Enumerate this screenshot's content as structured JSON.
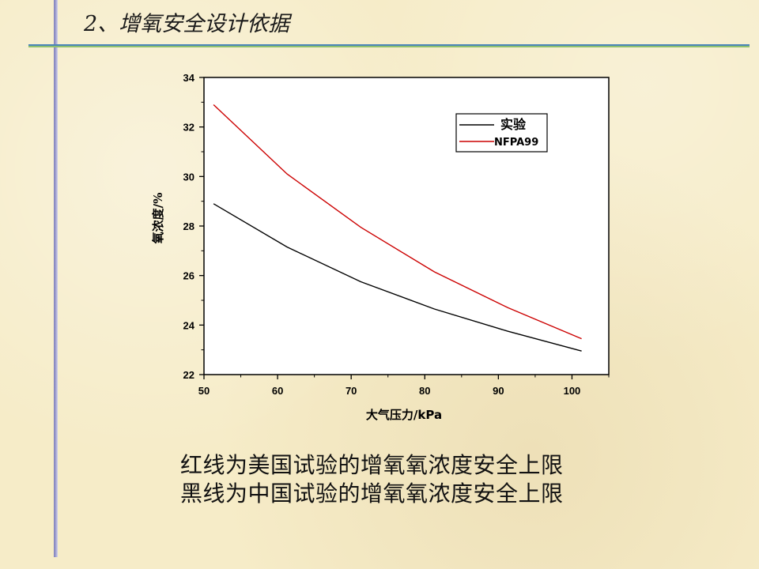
{
  "slide": {
    "title": "2、增氧安全设计依据",
    "caption_line1": "红线为美国试验的增氧氧浓度安全上限",
    "caption_line2": "黑线为中国试验的增氧氧浓度安全上限"
  },
  "colors": {
    "experiment": "#000000",
    "nfpa99": "#cc0000"
  },
  "chart_data": {
    "type": "line",
    "xlabel": "大气压力/kPa",
    "ylabel": "氧浓度/%",
    "xlim": [
      50,
      105
    ],
    "ylim": [
      22,
      34
    ],
    "xticks": [
      50,
      60,
      70,
      80,
      90,
      100
    ],
    "yticks": [
      22,
      24,
      26,
      28,
      30,
      32,
      34
    ],
    "legend_position": "top-right",
    "grid": false,
    "series": [
      {
        "name": "实验",
        "color": "#000000",
        "x": [
          51.3,
          61.3,
          71.3,
          81.3,
          91.3,
          101.3
        ],
        "y": [
          28.9,
          27.15,
          25.75,
          24.65,
          23.75,
          22.95
        ]
      },
      {
        "name": "NFPA99",
        "color": "#cc0000",
        "x": [
          51.3,
          61.3,
          71.3,
          81.3,
          91.3,
          101.3
        ],
        "y": [
          32.9,
          30.1,
          27.95,
          26.15,
          24.7,
          23.45
        ]
      }
    ]
  }
}
